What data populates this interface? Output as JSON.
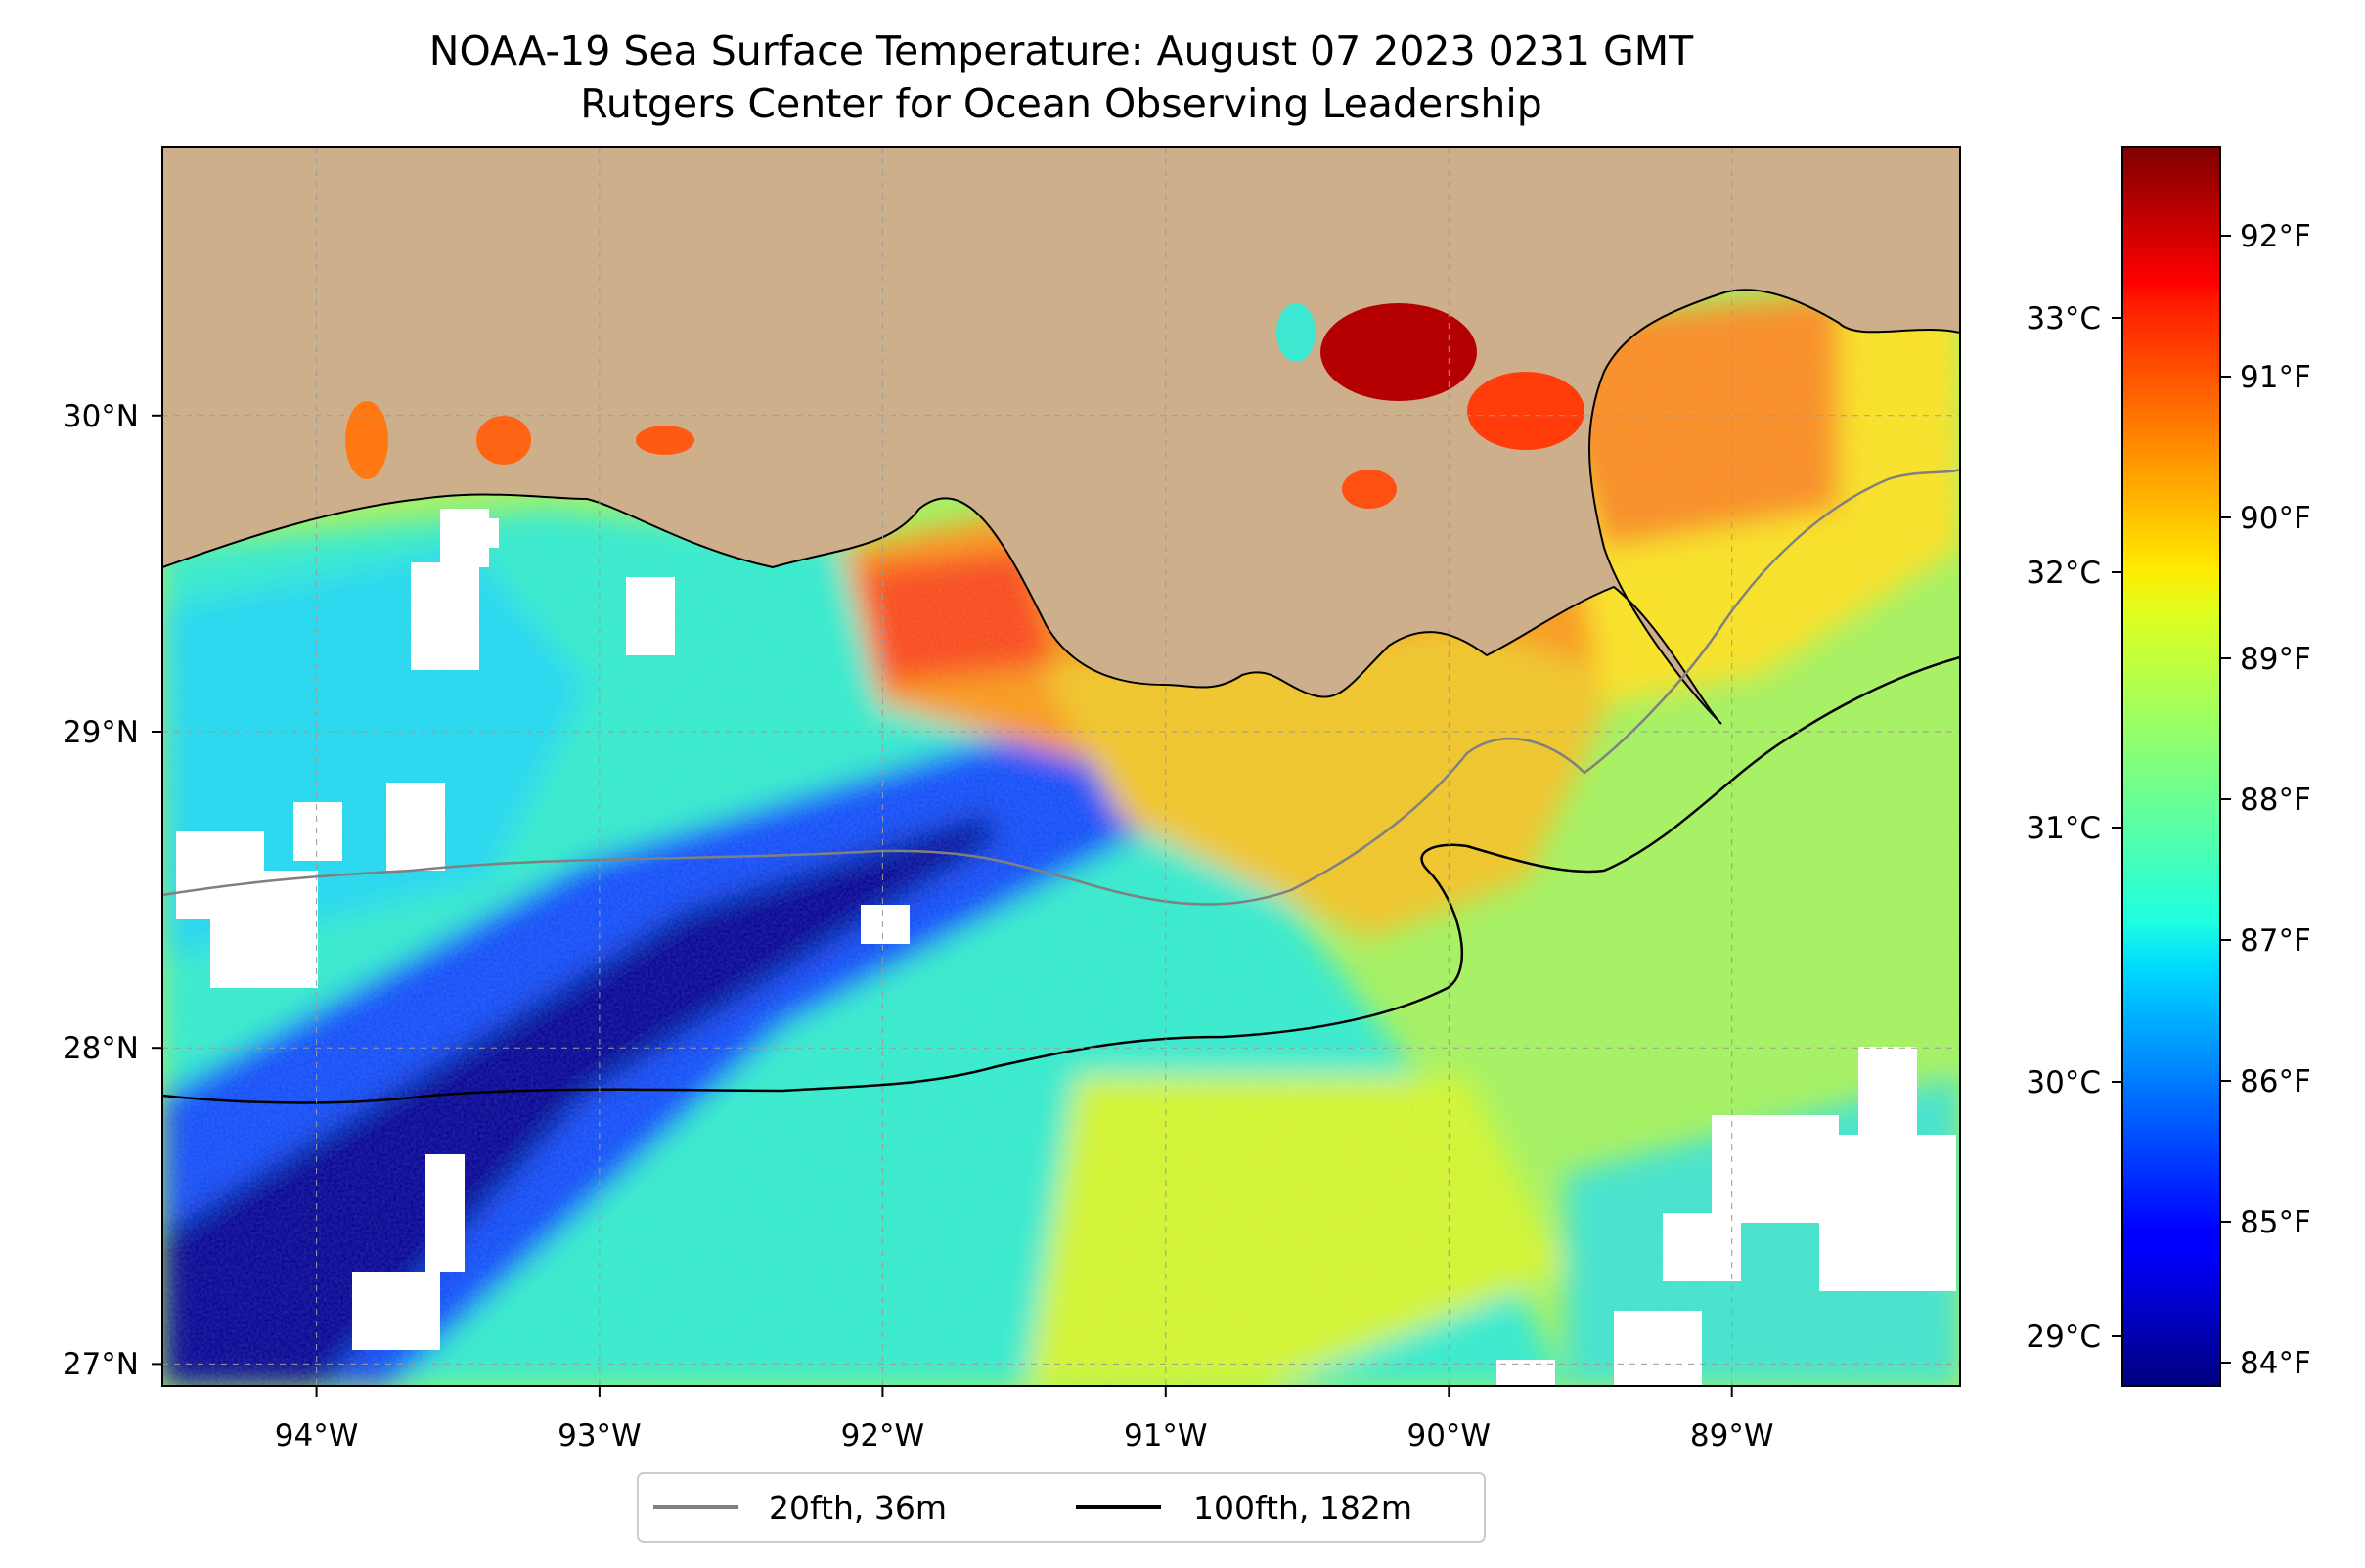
{
  "title": {
    "line1": "NOAA-19 Sea Surface Temperature: August 07 2023 0231 GMT",
    "line2": "Rutgers Center for Ocean Observing Leadership"
  },
  "map": {
    "lon_range": [
      -94.55,
      -88.2
    ],
    "lat_range": [
      26.93,
      30.85
    ],
    "lon_ticks": [
      {
        "value": -94,
        "label": "94°W"
      },
      {
        "value": -93,
        "label": "93°W"
      },
      {
        "value": -92,
        "label": "92°W"
      },
      {
        "value": -91,
        "label": "91°W"
      },
      {
        "value": -90,
        "label": "90°W"
      },
      {
        "value": -89,
        "label": "89°W"
      }
    ],
    "lat_ticks": [
      {
        "value": 27,
        "label": "27°N"
      },
      {
        "value": 28,
        "label": "28°N"
      },
      {
        "value": 29,
        "label": "29°N"
      },
      {
        "value": 30,
        "label": "30°N"
      }
    ],
    "grid": true,
    "land_color": "#cdb08b"
  },
  "colorbar": {
    "colormap": "jet",
    "range_f": [
      83.8,
      92.6
    ],
    "fahrenheit_ticks": [
      "84°F",
      "85°F",
      "86°F",
      "87°F",
      "88°F",
      "89°F",
      "90°F",
      "91°F",
      "92°F"
    ],
    "celsius_ticks": [
      "29°C",
      "30°C",
      "31°C",
      "32°C",
      "33°C"
    ]
  },
  "legend": {
    "placement": "bottom-center",
    "items": [
      {
        "label": "20fth, 36m",
        "color": "#808080"
      },
      {
        "label": "100fth, 182m",
        "color": "#000000"
      }
    ]
  }
}
